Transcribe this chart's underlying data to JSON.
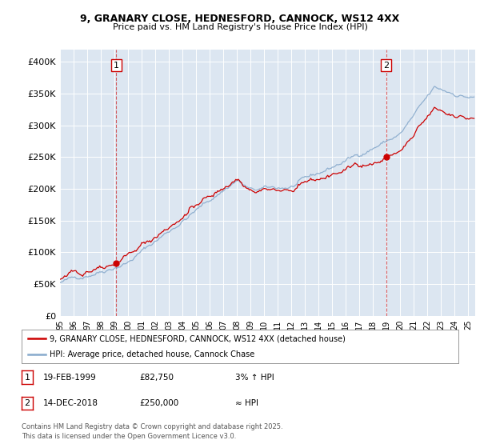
{
  "title_line1": "9, GRANARY CLOSE, HEDNESFORD, CANNOCK, WS12 4XX",
  "title_line2": "Price paid vs. HM Land Registry's House Price Index (HPI)",
  "plot_bg_color": "#dce6f1",
  "ylim": [
    0,
    420000
  ],
  "yticks": [
    0,
    50000,
    100000,
    150000,
    200000,
    250000,
    300000,
    350000,
    400000
  ],
  "ytick_labels": [
    "£0",
    "£50K",
    "£100K",
    "£150K",
    "£200K",
    "£250K",
    "£300K",
    "£350K",
    "£400K"
  ],
  "legend_line1": "9, GRANARY CLOSE, HEDNESFORD, CANNOCK, WS12 4XX (detached house)",
  "legend_line2": "HPI: Average price, detached house, Cannock Chase",
  "annotation1_date": "19-FEB-1999",
  "annotation1_price": "£82,750",
  "annotation1_rel": "3% ↑ HPI",
  "annotation2_date": "14-DEC-2018",
  "annotation2_price": "£250,000",
  "annotation2_rel": "≈ HPI",
  "footer": "Contains HM Land Registry data © Crown copyright and database right 2025.\nThis data is licensed under the Open Government Licence v3.0.",
  "line_color_red": "#cc0000",
  "line_color_blue": "#88aacc",
  "sale1_x": 1999.13,
  "sale1_y": 82750,
  "sale2_x": 2018.96,
  "sale2_y": 250000,
  "xmin": 1995,
  "xmax": 2025.5
}
